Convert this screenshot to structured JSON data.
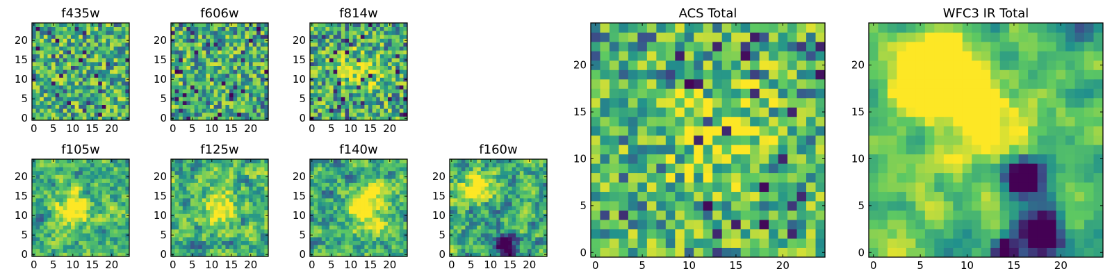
{
  "figure": {
    "colormap": "viridis",
    "colormap_stops": [
      "#440154",
      "#3b528b",
      "#21918c",
      "#5ec962",
      "#fde725"
    ]
  },
  "chart_data": [
    {
      "type": "heatmap",
      "title": "f435w",
      "size": 25,
      "x_ticks": [
        0,
        5,
        10,
        15,
        20
      ],
      "y_ticks": [
        0,
        5,
        10,
        15,
        20
      ],
      "xlim": [
        -0.5,
        24.5
      ],
      "ylim": [
        -0.5,
        24.5
      ],
      "origin": "lower",
      "grid": false,
      "style": "noise",
      "seed": 435,
      "smooth": 0,
      "blobs": []
    },
    {
      "type": "heatmap",
      "title": "f606w",
      "size": 25,
      "x_ticks": [
        0,
        5,
        10,
        15,
        20
      ],
      "y_ticks": [
        0,
        5,
        10,
        15,
        20
      ],
      "xlim": [
        -0.5,
        24.5
      ],
      "ylim": [
        -0.5,
        24.5
      ],
      "origin": "lower",
      "grid": false,
      "style": "noise",
      "seed": 606,
      "smooth": 0,
      "blobs": []
    },
    {
      "type": "heatmap",
      "title": "f814w",
      "size": 25,
      "x_ticks": [
        0,
        5,
        10,
        15,
        20
      ],
      "y_ticks": [
        0,
        5,
        10,
        15,
        20
      ],
      "xlim": [
        -0.5,
        24.5
      ],
      "ylim": [
        -0.5,
        24.5
      ],
      "origin": "lower",
      "grid": false,
      "style": "noise",
      "seed": 814,
      "smooth": 0,
      "blobs": [
        [
          12,
          12,
          3,
          0.4
        ]
      ]
    },
    {
      "type": "heatmap",
      "title": "f105w",
      "size": 25,
      "x_ticks": [
        0,
        5,
        10,
        15,
        20
      ],
      "y_ticks": [
        0,
        5,
        10,
        15,
        20
      ],
      "xlim": [
        -0.5,
        24.5
      ],
      "ylim": [
        -0.5,
        24.5
      ],
      "origin": "lower",
      "grid": false,
      "style": "smooth",
      "seed": 105,
      "smooth": 1,
      "blobs": [
        [
          10,
          12,
          3,
          0.5
        ]
      ]
    },
    {
      "type": "heatmap",
      "title": "f125w",
      "size": 25,
      "x_ticks": [
        0,
        5,
        10,
        15,
        20
      ],
      "y_ticks": [
        0,
        5,
        10,
        15,
        20
      ],
      "xlim": [
        -0.5,
        24.5
      ],
      "ylim": [
        -0.5,
        24.5
      ],
      "origin": "lower",
      "grid": false,
      "style": "smooth",
      "seed": 125,
      "smooth": 1,
      "blobs": [
        [
          12,
          12,
          3,
          0.5
        ]
      ]
    },
    {
      "type": "heatmap",
      "title": "f140w",
      "size": 25,
      "x_ticks": [
        0,
        5,
        10,
        15,
        20
      ],
      "y_ticks": [
        0,
        5,
        10,
        15,
        20
      ],
      "xlim": [
        -0.5,
        24.5
      ],
      "ylim": [
        -0.5,
        24.5
      ],
      "origin": "lower",
      "grid": false,
      "style": "smooth",
      "seed": 140,
      "smooth": 1,
      "blobs": [
        [
          14,
          12,
          3,
          0.6
        ]
      ]
    },
    {
      "type": "heatmap",
      "title": "f160w",
      "size": 25,
      "x_ticks": [
        0,
        5,
        10,
        15,
        20
      ],
      "y_ticks": [
        0,
        5,
        10,
        15,
        20
      ],
      "xlim": [
        -0.5,
        24.5
      ],
      "ylim": [
        -0.5,
        24.5
      ],
      "origin": "lower",
      "grid": false,
      "style": "smooth",
      "seed": 160,
      "smooth": 1,
      "blobs": [
        [
          7,
          18,
          3,
          0.5
        ],
        [
          14,
          2,
          2,
          -0.7
        ]
      ]
    },
    {
      "type": "heatmap",
      "title": "ACS Total",
      "size": 25,
      "x_ticks": [
        0,
        5,
        10,
        15,
        20
      ],
      "y_ticks": [
        0,
        5,
        10,
        15,
        20
      ],
      "xlim": [
        -0.5,
        24.5
      ],
      "ylim": [
        -0.5,
        24.5
      ],
      "origin": "lower",
      "grid": false,
      "style": "noise",
      "seed": 999,
      "smooth": 0,
      "blobs": [
        [
          13,
          13,
          4,
          0.3
        ]
      ]
    },
    {
      "type": "heatmap",
      "title": "WFC3 IR Total",
      "size": 25,
      "x_ticks": [
        0,
        5,
        10,
        15,
        20
      ],
      "y_ticks": [
        0,
        5,
        10,
        15,
        20
      ],
      "xlim": [
        -0.5,
        24.5
      ],
      "ylim": [
        -0.5,
        24.5
      ],
      "origin": "lower",
      "grid": false,
      "style": "smooth",
      "seed": 3,
      "smooth": 2,
      "blobs": [
        [
          7,
          19,
          3,
          1.0
        ],
        [
          13,
          13,
          3,
          0.5
        ],
        [
          16,
          8,
          1.5,
          -1.2
        ],
        [
          18,
          2,
          1.5,
          -1.2
        ],
        [
          14,
          0,
          1,
          -1.0
        ]
      ]
    }
  ]
}
